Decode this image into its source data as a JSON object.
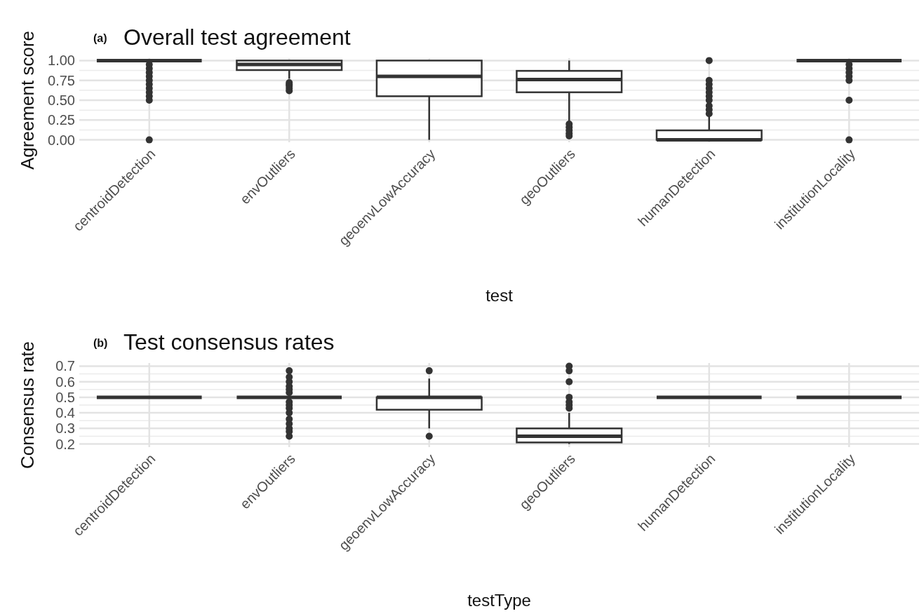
{
  "chart_data": [
    {
      "type": "box",
      "title": "Overall test agreement",
      "annotations": [
        "(a)"
      ],
      "xlabel": "test",
      "ylabel": "Agreement score",
      "categories": [
        "centroidDetection",
        "envOutliers",
        "geoenvLowAccuracy",
        "geoOutliers",
        "humanDetection",
        "institutionLocality"
      ],
      "ylim": [
        -0.03,
        1.03
      ],
      "yticks": [
        {
          "value": 0,
          "label": "0.00"
        },
        {
          "value": 0.25,
          "label": "0.25"
        },
        {
          "value": 0.5,
          "label": "0.50"
        },
        {
          "value": 0.75,
          "label": "0.75"
        },
        {
          "value": 1,
          "label": "1.00"
        }
      ],
      "grid": true,
      "boxes": [
        {
          "low": 1,
          "q1": 1,
          "median": 1,
          "q3": 1,
          "high": 1,
          "outliers": [
            0,
            0.5,
            0.55,
            0.6,
            0.65,
            0.7,
            0.75,
            0.8,
            0.85,
            0.9,
            0.95
          ]
        },
        {
          "low": 0.77,
          "q1": 0.88,
          "median": 0.95,
          "q3": 1,
          "high": 1,
          "outliers": [
            0.62,
            0.65,
            0.68,
            0.7,
            0.72
          ]
        },
        {
          "low": 0,
          "q1": 0.55,
          "median": 0.8,
          "q3": 1,
          "high": 1
        },
        {
          "low": 0.23,
          "q1": 0.6,
          "median": 0.76,
          "q3": 0.87,
          "high": 1,
          "outliers": [
            0.05,
            0.08,
            0.12,
            0.16,
            0.2
          ]
        },
        {
          "low": 0,
          "q1": 0,
          "median": 0,
          "q3": 0.12,
          "high": 0.3,
          "outliers": [
            0.33,
            0.38,
            0.43,
            0.5,
            0.55,
            0.6,
            0.65,
            0.7,
            0.75,
            1
          ]
        },
        {
          "low": 1,
          "q1": 1,
          "median": 1,
          "q3": 1,
          "high": 1,
          "outliers": [
            0,
            0.5,
            0.75,
            0.8,
            0.85,
            0.9,
            0.95
          ]
        }
      ]
    },
    {
      "type": "box",
      "title": "Test consensus rates",
      "annotations": [
        "(b)"
      ],
      "xlabel": "testType",
      "ylabel": "Consensus rate",
      "categories": [
        "centroidDetection",
        "envOutliers",
        "geoenvLowAccuracy",
        "geoOutliers",
        "humanDetection",
        "institutionLocality"
      ],
      "ylim": [
        0.18,
        0.72
      ],
      "yticks": [
        0.2,
        0.3,
        0.4,
        0.5,
        0.6,
        0.7
      ],
      "grid": true,
      "boxes": [
        {
          "low": 0.5,
          "q1": 0.5,
          "median": 0.5,
          "q3": 0.5,
          "high": 0.5
        },
        {
          "low": 0.5,
          "q1": 0.5,
          "median": 0.5,
          "q3": 0.5,
          "high": 0.5,
          "outliers": [
            0.25,
            0.28,
            0.3,
            0.33,
            0.36,
            0.4,
            0.43,
            0.45,
            0.47,
            0.53,
            0.55,
            0.57,
            0.6,
            0.63,
            0.67
          ]
        },
        {
          "low": 0.3,
          "q1": 0.42,
          "median": 0.5,
          "q3": 0.5,
          "high": 0.62,
          "outliers": [
            0.25,
            0.67
          ]
        },
        {
          "low": 0.2,
          "q1": 0.21,
          "median": 0.25,
          "q3": 0.3,
          "high": 0.4,
          "outliers": [
            0.43,
            0.45,
            0.47,
            0.5,
            0.6,
            0.67,
            0.7
          ]
        },
        {
          "low": 0.5,
          "q1": 0.5,
          "median": 0.5,
          "q3": 0.5,
          "high": 0.5
        },
        {
          "low": 0.5,
          "q1": 0.5,
          "median": 0.5,
          "q3": 0.5,
          "high": 0.5
        }
      ]
    }
  ]
}
